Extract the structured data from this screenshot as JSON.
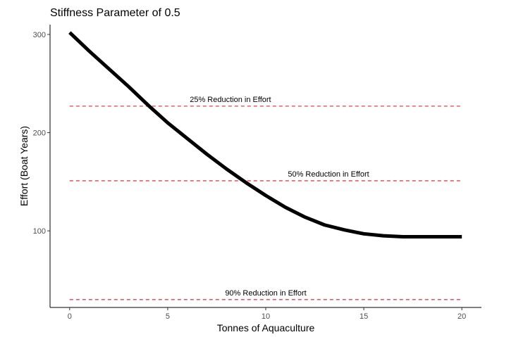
{
  "chart_data": {
    "type": "line",
    "title": "Stiffness Parameter of 0.5",
    "xlabel": "Tonnes of Aquaculture",
    "ylabel": "Effort (Boat Years)",
    "xlim": [
      -1,
      21
    ],
    "ylim": [
      22,
      310
    ],
    "xticks": [
      0,
      5,
      10,
      15,
      20
    ],
    "yticks": [
      100,
      200,
      300
    ],
    "grid": false,
    "series": [
      {
        "color": "#000000",
        "x": [
          0,
          1,
          2,
          3,
          4,
          5,
          6,
          7,
          8,
          9,
          10,
          11,
          12,
          13,
          14,
          15,
          16,
          17,
          18,
          19,
          20
        ],
        "y": [
          302,
          283,
          265,
          247,
          228,
          210,
          194,
          178,
          163,
          149,
          136,
          124,
          114,
          106,
          101,
          97,
          95,
          94,
          94,
          94,
          94
        ]
      }
    ],
    "reference_lines": [
      {
        "y": 227,
        "label": "25% Reduction in Effort",
        "label_x": 8.2,
        "color": "#e0404a"
      },
      {
        "y": 151,
        "label": "50% Reduction in Effort",
        "label_x": 13.2,
        "color": "#e0404a"
      },
      {
        "y": 30,
        "label": "90% Reduction in Effort",
        "label_x": 10,
        "color": "#e0404a"
      }
    ]
  }
}
